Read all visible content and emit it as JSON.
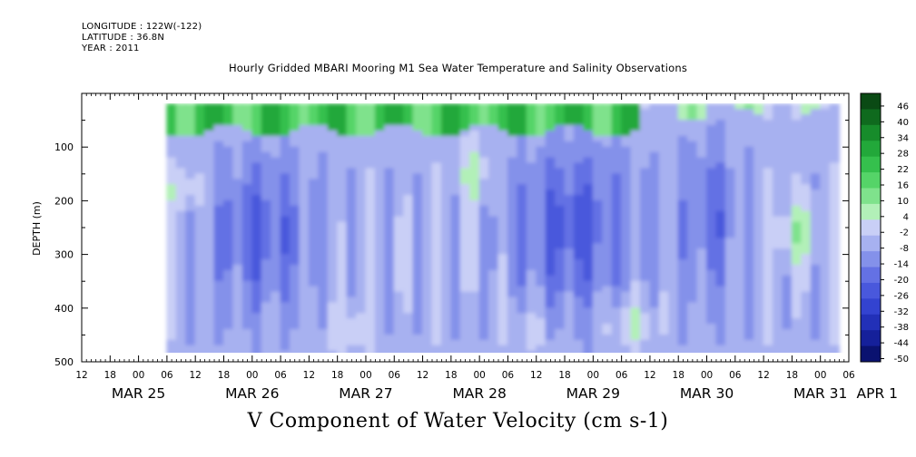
{
  "header": {
    "longitude": "LONGITUDE : 122W(-122)",
    "latitude": "LATITUDE : 36.8N",
    "year": "YEAR : 2011"
  },
  "chart_data": {
    "type": "heatmap",
    "title": "Hourly Gridded MBARI Mooring M1 Sea Water Temperature and Salinity Observations",
    "xlabel": "V Component of Water Velocity (cm s-1)",
    "ylabel": "DEPTH (m)",
    "y_reversed": true,
    "ylim": [
      0,
      500
    ],
    "data_depth_range": [
      20,
      485
    ],
    "data_time_range_hours": [
      18,
      159
    ],
    "x_range_hours": [
      0,
      162
    ],
    "y_ticks": [
      100,
      200,
      300,
      400,
      500
    ],
    "hour_ticks": [
      "12",
      "18",
      "00",
      "06",
      "12",
      "18",
      "00",
      "06",
      "12",
      "18",
      "00",
      "06",
      "12",
      "18",
      "00",
      "06",
      "12",
      "18",
      "00",
      "06",
      "12",
      "18",
      "00",
      "06",
      "12",
      "18",
      "00",
      "06"
    ],
    "date_labels": [
      {
        "label": "MAR 25",
        "hour": 12
      },
      {
        "label": "MAR 26",
        "hour": 36
      },
      {
        "label": "MAR 27",
        "hour": 60
      },
      {
        "label": "MAR 28",
        "hour": 84
      },
      {
        "label": "MAR 29",
        "hour": 108
      },
      {
        "label": "MAR 30",
        "hour": 132
      },
      {
        "label": "MAR 31",
        "hour": 156
      },
      {
        "label": "APR 1",
        "hour": 168
      }
    ],
    "colorbar": {
      "levels": [
        "46",
        "40",
        "34",
        "28",
        "22",
        "16",
        "10",
        "4",
        "-2",
        "-8",
        "-14",
        "-20",
        "-26",
        "-32",
        "-38",
        "-44",
        "-50"
      ],
      "colors": [
        "#0a4a14",
        "#0f6a1e",
        "#178c2b",
        "#22a83a",
        "#35c04d",
        "#55d468",
        "#7fe28c",
        "#b2f0b8",
        "#c9cff6",
        "#a7b1f0",
        "#8491ea",
        "#6471e4",
        "#4958dc",
        "#3343d0",
        "#2230b8",
        "#15209a",
        "#0a1270"
      ]
    },
    "field_summary": [
      {
        "depth_range_m": [
          20,
          80
        ],
        "typical_value": 20,
        "note": "positive (green) near-surface layer across most of the period"
      },
      {
        "depth_range_m": [
          80,
          485
        ],
        "typical_value": -15,
        "note": "negative (blue) at depth, strongest about -30 around MAR 26-27 and MAR 29-30"
      }
    ]
  }
}
